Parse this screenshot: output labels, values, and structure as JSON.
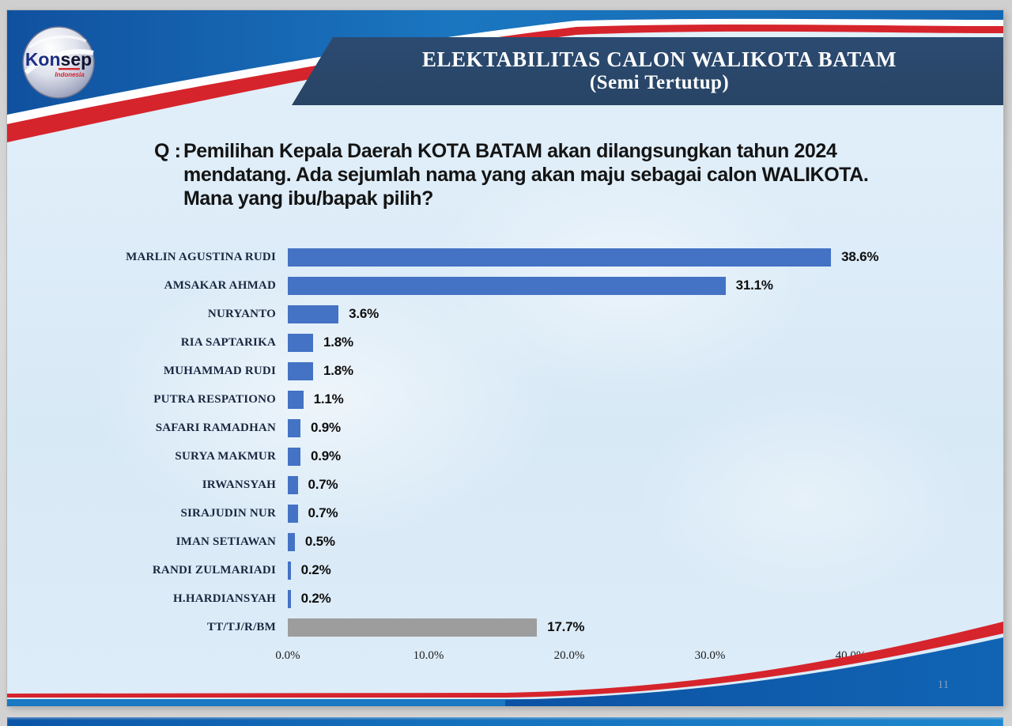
{
  "window": {
    "page_number": "11"
  },
  "logo": {
    "brand_kon": "Kon",
    "brand_sep": "sep",
    "subtitle": "Indonesia"
  },
  "banner": {
    "line1": "ELEKTABILITAS CALON WALIKOTA BATAM",
    "line2": "(Semi Tertutup)"
  },
  "question": {
    "prefix": "Q :",
    "line1": "Pemilihan Kepala Daerah KOTA BATAM akan dilangsungkan tahun 2024",
    "line2": "mendatang. Ada sejumlah nama yang akan maju sebagai calon WALIKOTA.",
    "line3": "Mana yang ibu/bapak pilih?"
  },
  "chart_data": {
    "type": "bar",
    "orientation": "horizontal",
    "title": "",
    "xlabel": "",
    "ylabel": "",
    "xlim": [
      0,
      40
    ],
    "grid": false,
    "legend": false,
    "value_label_position": "end-of-bar",
    "categories": [
      "MARLIN AGUSTINA RUDI",
      "AMSAKAR AHMAD",
      "NURYANTO",
      "RIA SAPTARIKA",
      "MUHAMMAD RUDI",
      "PUTRA RESPATIONO",
      "SAFARI RAMADHAN",
      "SURYA MAKMUR",
      "IRWANSYAH",
      "SIRAJUDIN NUR",
      "IMAN SETIAWAN",
      "RANDI ZULMARIADI",
      "H.HARDIANSYAH",
      "TT/TJ/R/BM"
    ],
    "values": [
      38.6,
      31.1,
      3.6,
      1.8,
      1.8,
      1.1,
      0.9,
      0.9,
      0.7,
      0.7,
      0.5,
      0.2,
      0.2,
      17.7
    ],
    "value_labels": [
      "38.6%",
      "31.1%",
      "3.6%",
      "1.8%",
      "1.8%",
      "1.1%",
      "0.9%",
      "0.9%",
      "0.7%",
      "0.7%",
      "0.5%",
      "0.2%",
      "0.2%",
      "17.7%"
    ],
    "bar_colors": [
      "#4472C4",
      "#4472C4",
      "#4472C4",
      "#4472C4",
      "#4472C4",
      "#4472C4",
      "#4472C4",
      "#4472C4",
      "#4472C4",
      "#4472C4",
      "#4472C4",
      "#4472C4",
      "#4472C4",
      "#9D9D9D"
    ],
    "x_ticks": {
      "labels": [
        "0.0%",
        "10.0%",
        "20.0%",
        "30.0%",
        "40.0%"
      ],
      "values": [
        0,
        10,
        20,
        30,
        40
      ]
    }
  },
  "colors": {
    "bar_blue": "#4472C4",
    "bar_gray": "#9D9D9D",
    "banner_navy": "#294669",
    "ribbon_red": "#D6242C",
    "top_blue": "#1666B8",
    "body_light": "#DCEBF8"
  }
}
